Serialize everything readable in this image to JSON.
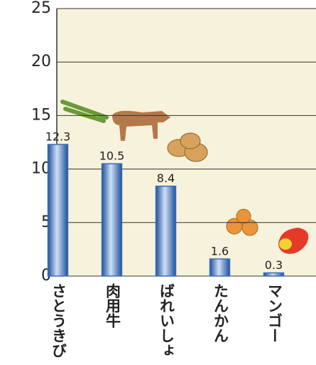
{
  "chart_data": {
    "type": "bar",
    "categories": [
      "さとうきび",
      "肉用牛",
      "ばれいしょ",
      "たんかん",
      "マンゴー"
    ],
    "values": [
      12.3,
      10.5,
      8.4,
      1.6,
      0.3
    ],
    "color": "#3a6fb8",
    "ylim": [
      0,
      25
    ],
    "yticks": [
      0,
      5,
      10,
      15,
      20,
      25
    ],
    "grid": true
  }
}
